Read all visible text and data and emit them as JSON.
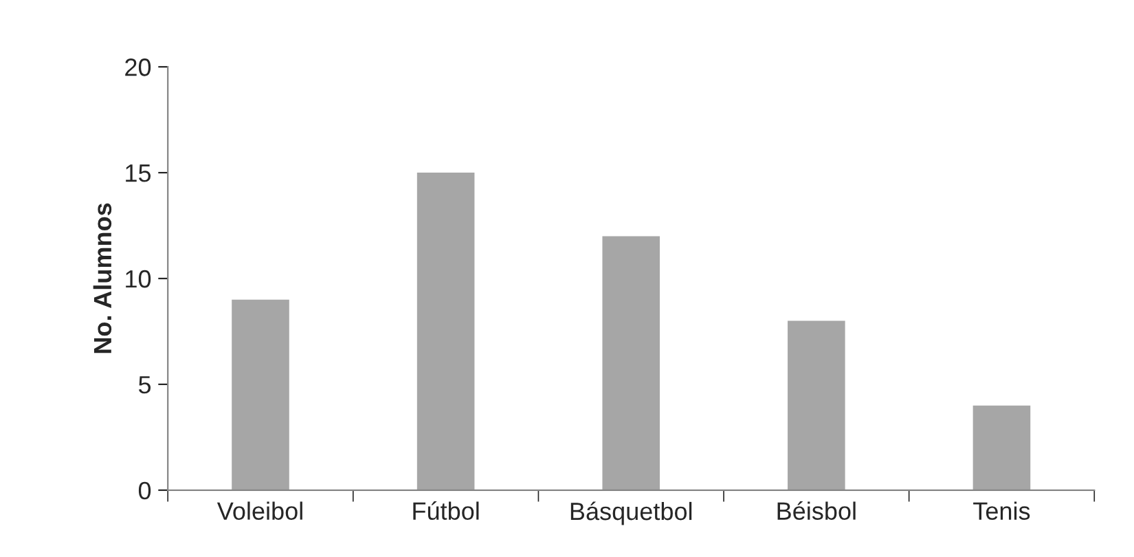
{
  "chart_data": {
    "type": "bar",
    "ylabel": "No. Alumnos",
    "categories": [
      "Voleibol",
      "Fútbol",
      "Básquetbol",
      "Béisbol",
      "Tenis"
    ],
    "values": [
      9,
      15,
      12,
      8,
      4
    ],
    "color": "#a6a6a6",
    "ylim": [
      0,
      20
    ],
    "yticks": [
      0,
      5,
      10,
      15,
      20
    ],
    "grid": false
  }
}
